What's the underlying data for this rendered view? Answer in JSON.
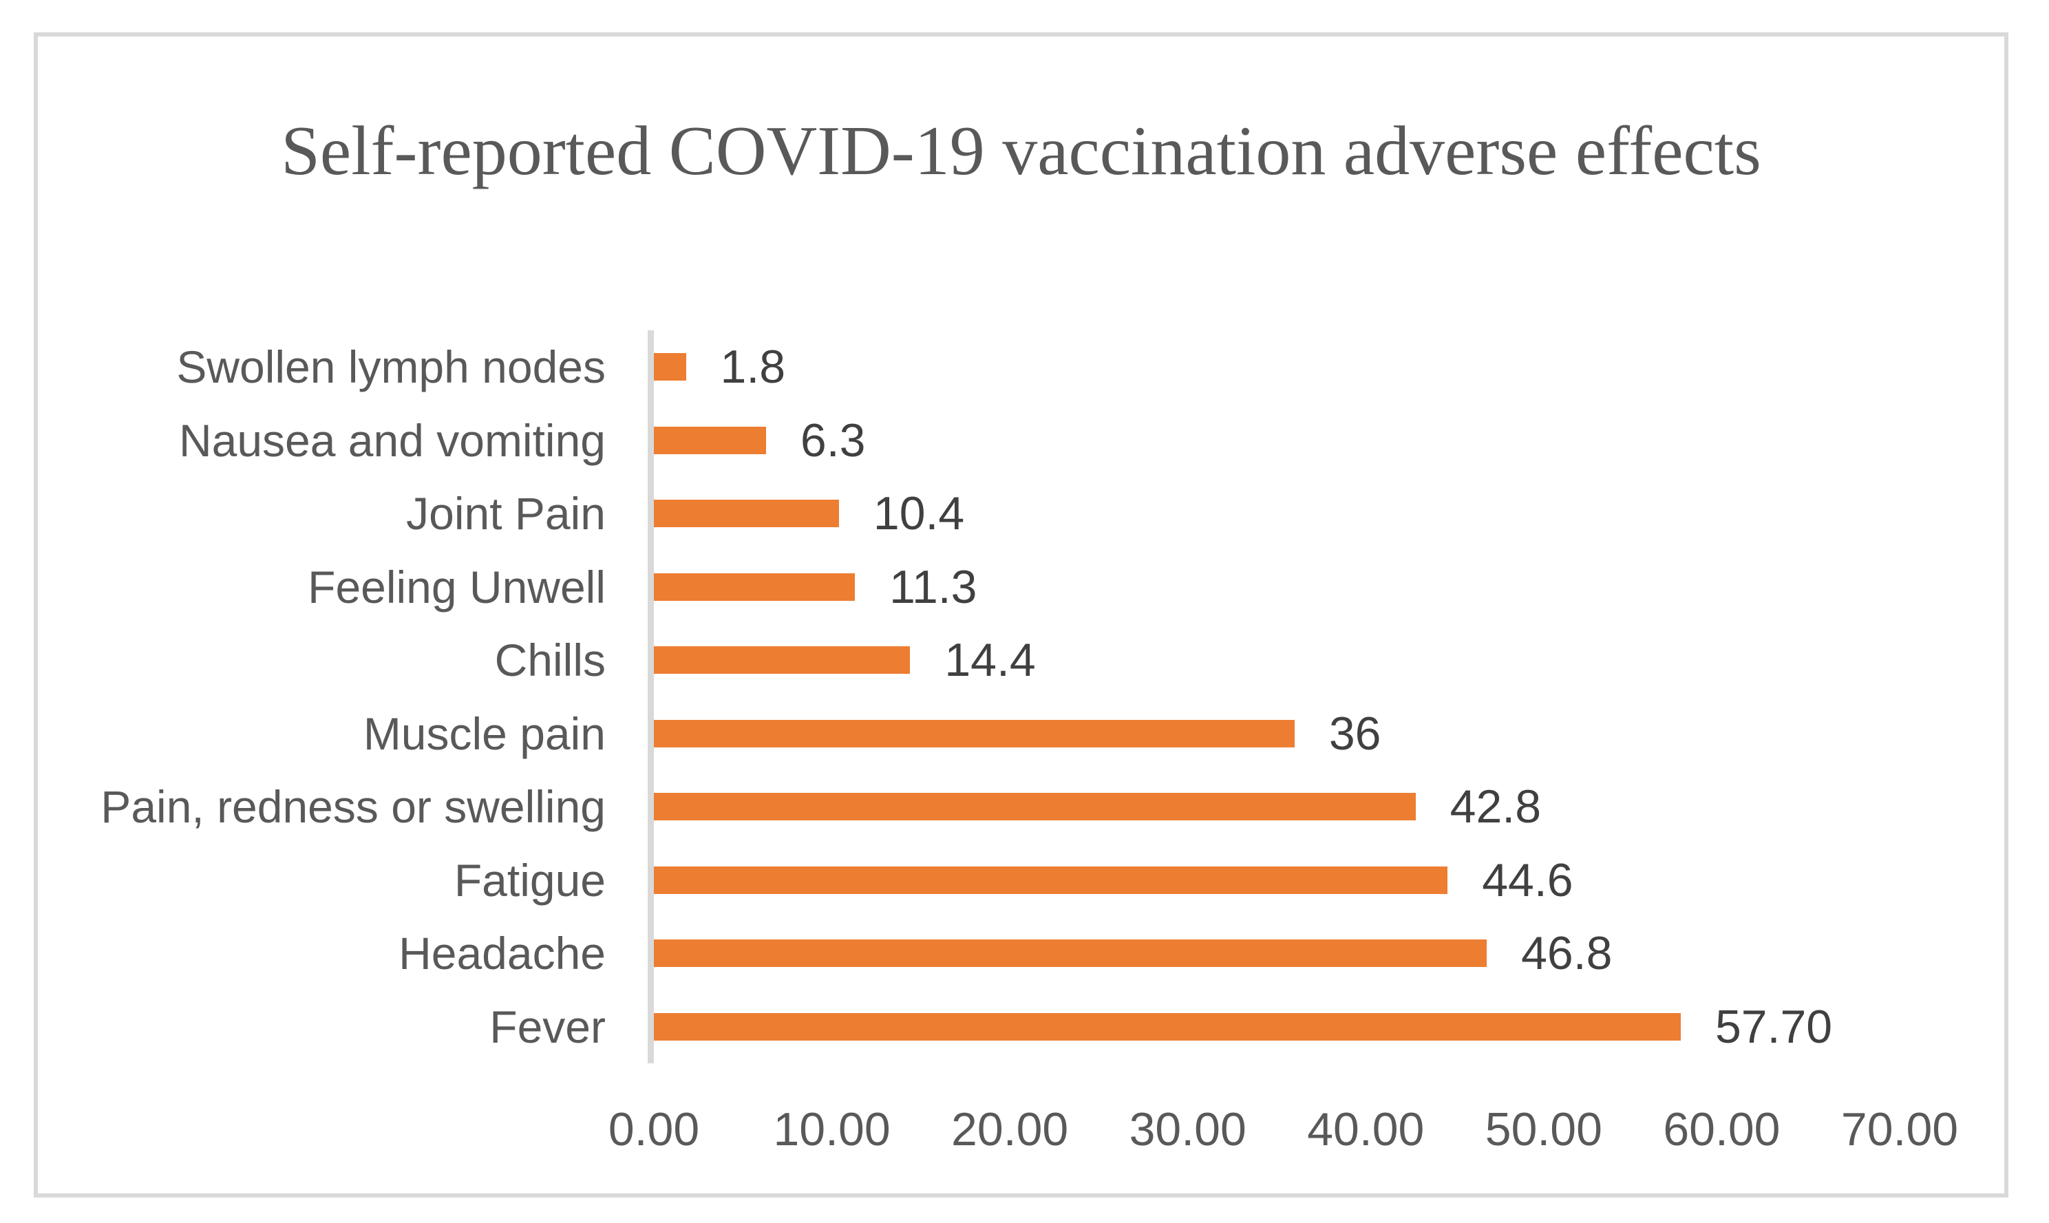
{
  "chart_data": {
    "type": "bar",
    "orientation": "horizontal",
    "title": "Self-reported COVID-19 vaccination adverse effects",
    "categories": [
      "Swollen lymph nodes",
      "Nausea and vomiting",
      "Joint Pain",
      "Feeling Unwell",
      "Chills",
      "Muscle pain",
      "Pain, redness or swelling",
      "Fatigue",
      "Headache",
      "Fever"
    ],
    "values": [
      1.8,
      6.3,
      10.4,
      11.3,
      14.4,
      36,
      42.8,
      44.6,
      46.8,
      57.7
    ],
    "value_labels": [
      "1.8",
      "6.3",
      "10.4",
      "11.3",
      "14.4",
      "36",
      "42.8",
      "44.6",
      "46.8",
      "57.70"
    ],
    "x_ticks": [
      "0.00",
      "10.00",
      "20.00",
      "30.00",
      "40.00",
      "50.00",
      "60.00",
      "70.00"
    ],
    "xlim": [
      0,
      70
    ],
    "xlabel": "",
    "ylabel": "",
    "grid": false,
    "legend": false,
    "bar_color": "#ED7D31",
    "axis_line_color": "#D9D9D9",
    "title_color": "#595959",
    "tick_label_color": "#595959",
    "data_label_color": "#404040"
  }
}
